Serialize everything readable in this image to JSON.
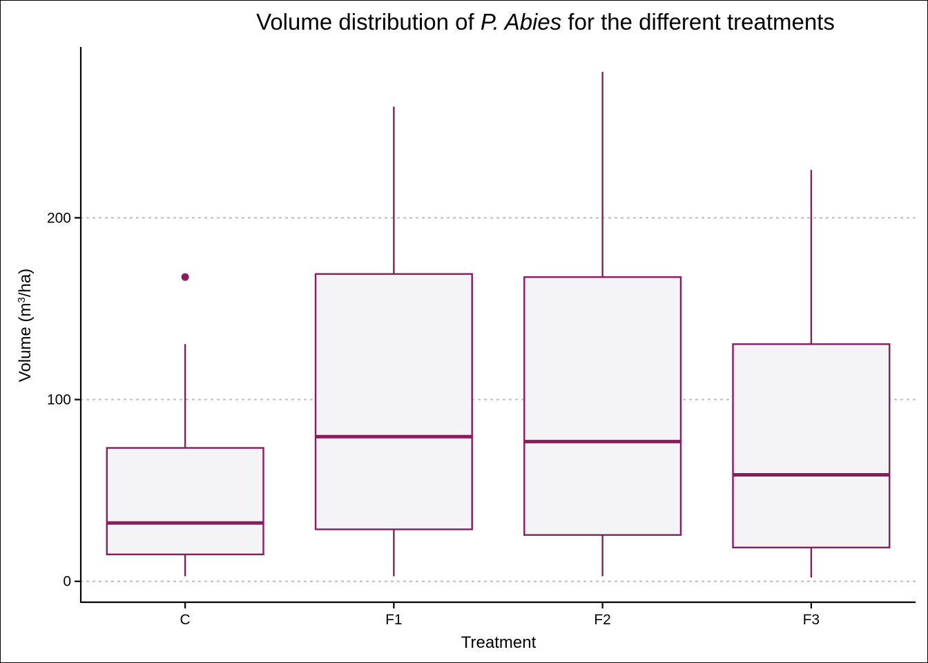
{
  "chart_data": {
    "type": "boxplot",
    "title": {
      "prefix": "Volume distribution of ",
      "species": "P. Abies",
      "suffix": " for the different treatments"
    },
    "xlabel": "Treatment",
    "ylabel": {
      "before": "Volume (m",
      "sup": "3",
      "after": "/ha)"
    },
    "categories": [
      "C",
      "F1",
      "F2",
      "F3"
    ],
    "y_ticks": [
      0,
      100,
      200
    ],
    "y_tick_labels": [
      "0",
      "100",
      "200"
    ],
    "ylim": [
      -11.5,
      294
    ],
    "grid": "dotted horizontal major gridlines",
    "box_color": "#8B1A5F",
    "box_fill": "#F4F3F5",
    "boxes": [
      {
        "category": "C",
        "whisker_low": 2.8,
        "q1": 14.8,
        "median": 32.1,
        "q3": 73.4,
        "whisker_high": 130.5,
        "outliers": [
          167.4
        ]
      },
      {
        "category": "F1",
        "whisker_low": 2.8,
        "q1": 28.6,
        "median": 79.6,
        "q3": 169.1,
        "whisker_high": 261.2,
        "outliers": []
      },
      {
        "category": "F2",
        "whisker_low": 2.8,
        "q1": 25.5,
        "median": 76.9,
        "q3": 167.4,
        "whisker_high": 280.3,
        "outliers": []
      },
      {
        "category": "F3",
        "whisker_low": 2.1,
        "q1": 18.6,
        "median": 58.6,
        "q3": 130.5,
        "whisker_high": 226.3,
        "outliers": []
      }
    ]
  }
}
